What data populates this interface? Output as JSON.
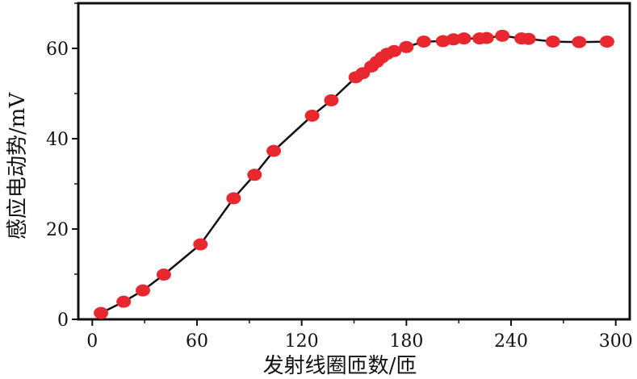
{
  "chart_data": {
    "type": "line",
    "xlabel": "发射线圈匝数/匝",
    "ylabel": "感应电动势/mV",
    "xlim": [
      -8,
      308
    ],
    "ylim": [
      0,
      70
    ],
    "xticks": [
      0,
      60,
      120,
      180,
      240,
      300
    ],
    "yticks": [
      0,
      20,
      40,
      60
    ],
    "x_tick_labels": [
      "0",
      "60",
      "120",
      "180",
      "240",
      "300"
    ],
    "y_tick_labels": [
      "0",
      "20",
      "40",
      "60"
    ],
    "grid": false,
    "series": [
      {
        "x": [
          5,
          18,
          29,
          41,
          62,
          81,
          93,
          104,
          126,
          137,
          151,
          155,
          160,
          163,
          166,
          169,
          173,
          180,
          190,
          201,
          207,
          213,
          222,
          226,
          235,
          246,
          250,
          264,
          279,
          295
        ],
        "y": [
          1.4,
          3.9,
          6.4,
          9.9,
          16.6,
          26.8,
          32.0,
          37.3,
          45.1,
          48.5,
          53.6,
          54.5,
          56.0,
          57.0,
          58.0,
          58.8,
          59.4,
          60.3,
          61.5,
          61.6,
          62.0,
          62.2,
          62.2,
          62.3,
          62.8,
          62.2,
          62.1,
          61.5,
          61.4,
          61.5
        ]
      }
    ],
    "colors": {
      "line": "#111111",
      "marker": "#e8282e",
      "axis": "#111111"
    }
  }
}
